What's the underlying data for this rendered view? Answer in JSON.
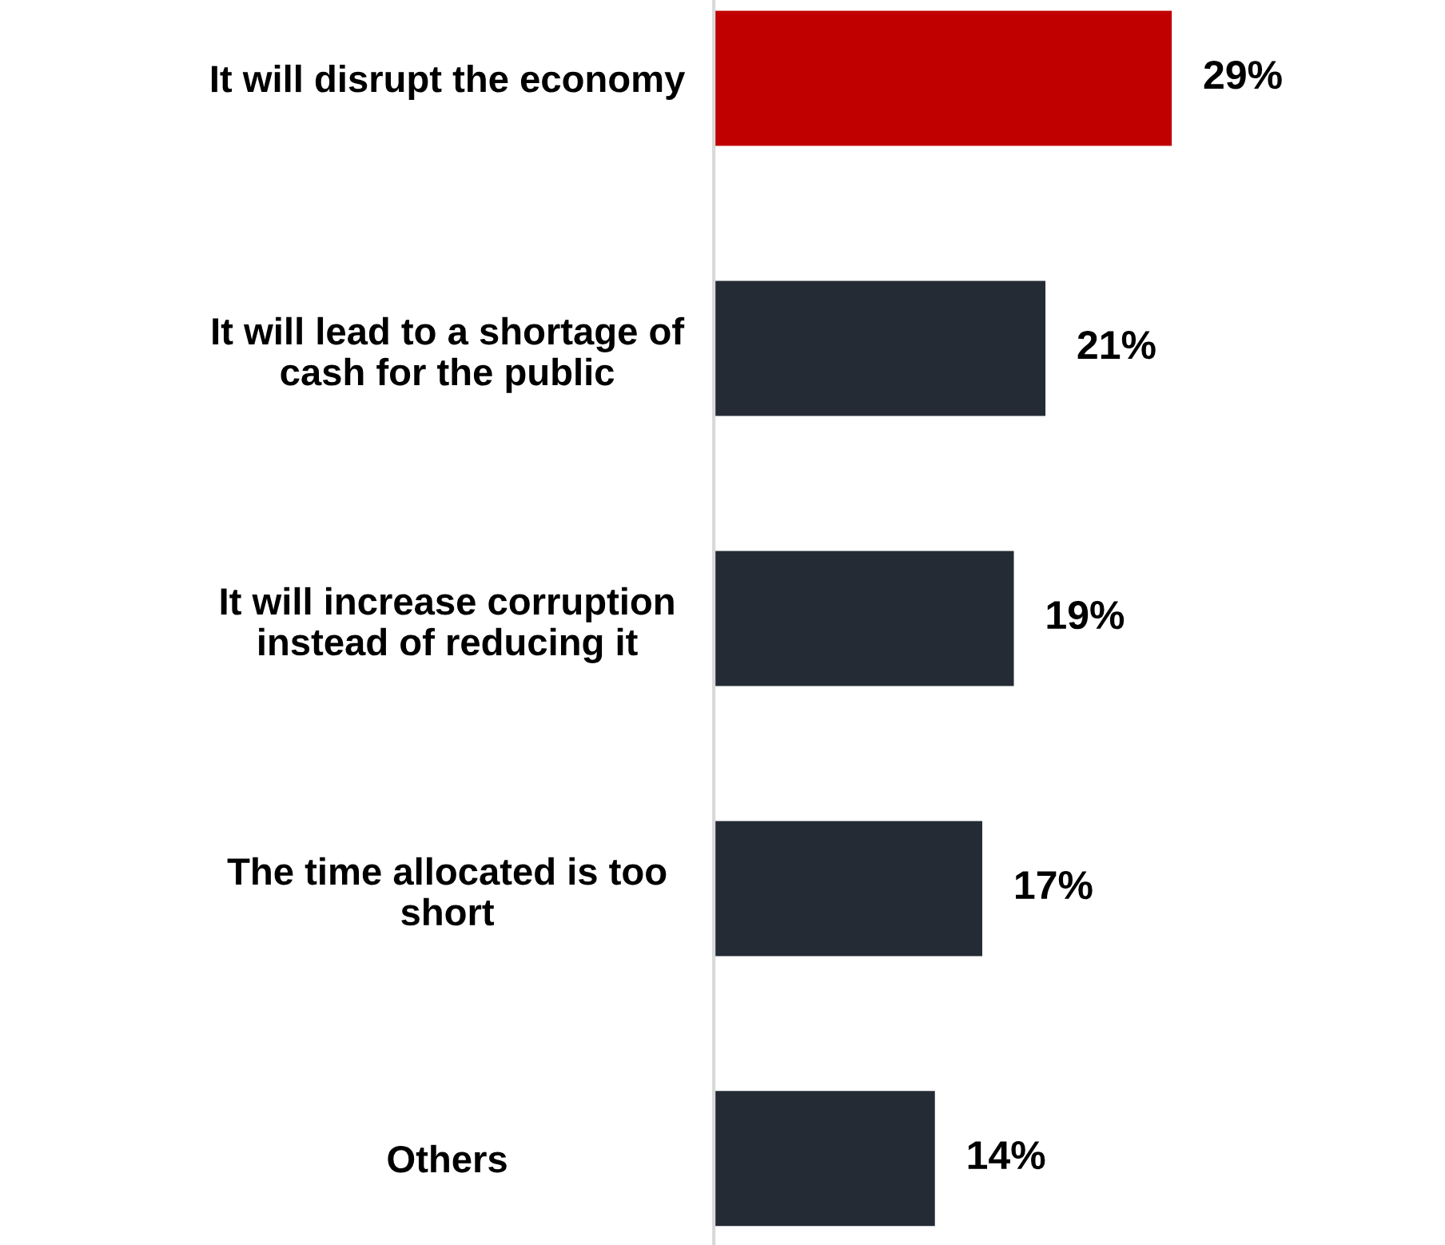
{
  "chart_data": {
    "type": "bar",
    "orientation": "horizontal",
    "categories": [
      "It will disrupt the economy",
      "It will lead to a shortage of\ncash for the public",
      "It will increase corruption\ninstead of reducing it",
      "The time allocated is too\nshort",
      "Others"
    ],
    "values": [
      29,
      21,
      19,
      17,
      14
    ],
    "colors": [
      "#c00000",
      "#242b35",
      "#242b35",
      "#242b35",
      "#242b35"
    ],
    "value_labels": [
      "29%",
      "21%",
      "19%",
      "17%",
      "14%"
    ],
    "grid": false,
    "legend": false
  }
}
